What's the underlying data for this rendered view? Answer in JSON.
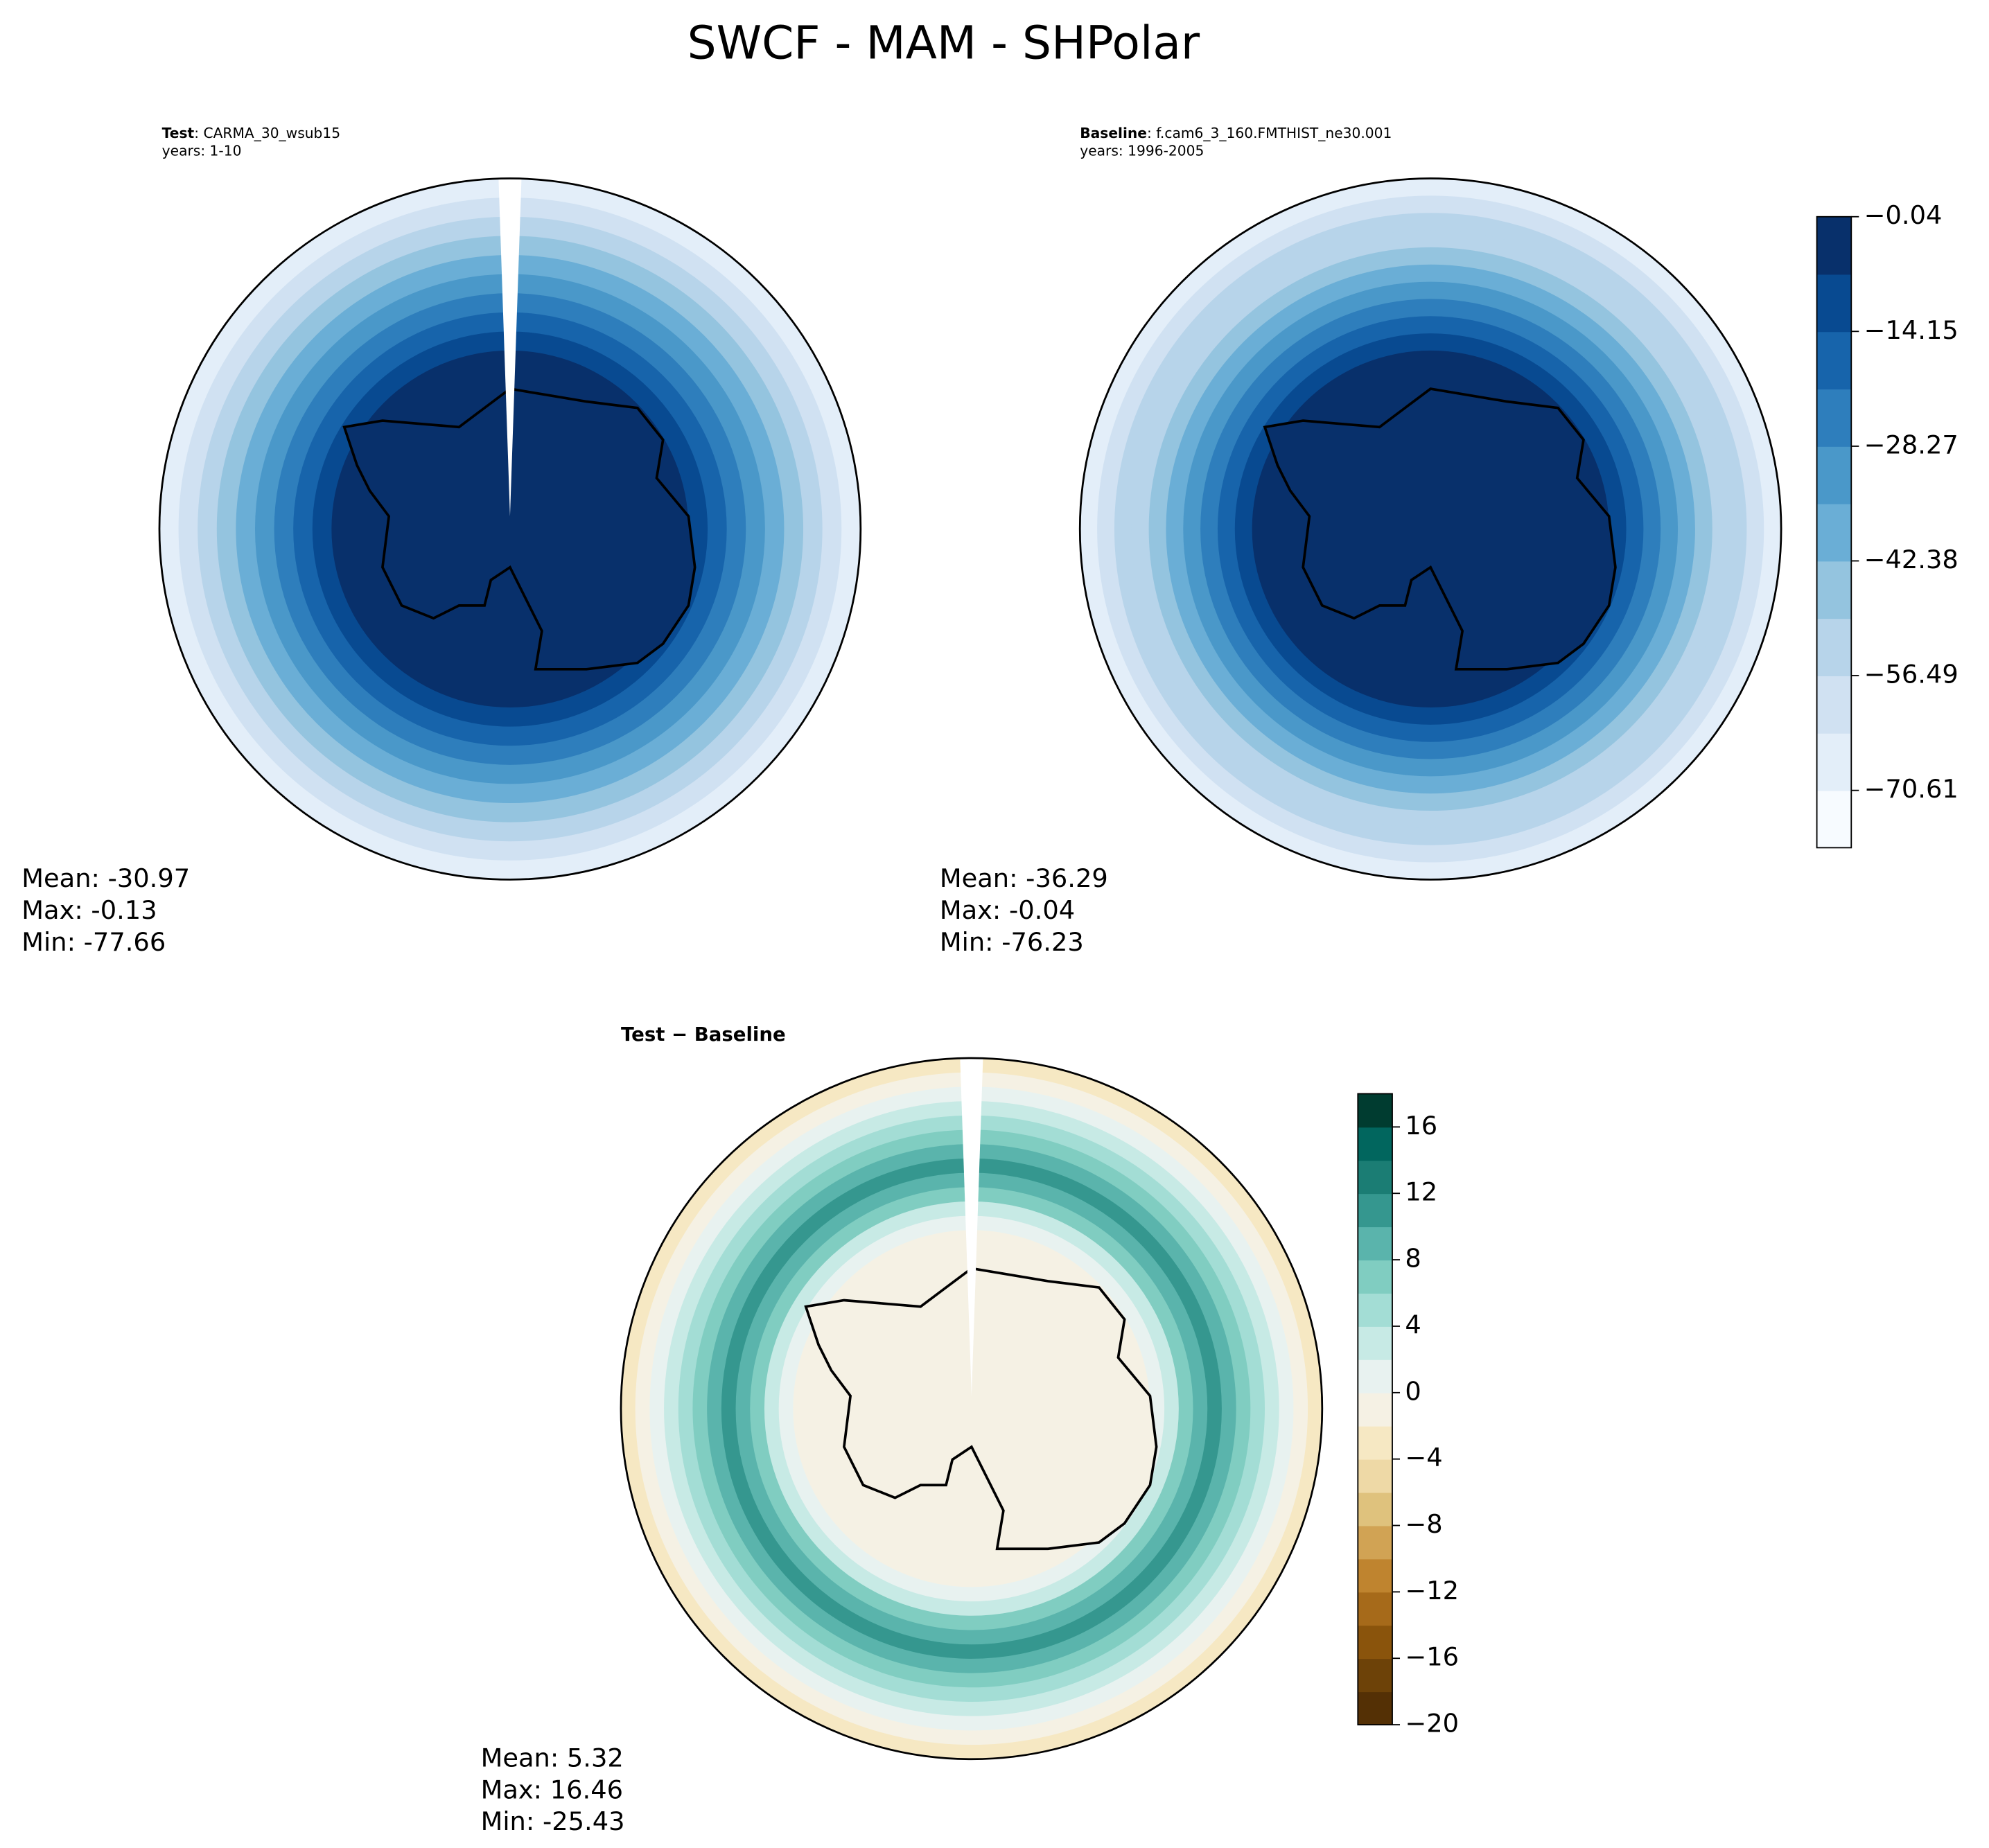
{
  "title": "SWCF - MAM - SHPolar",
  "panels": [
    {
      "name": "Test",
      "case": ": CARMA_30_wsub15",
      "years": "years: 1-10",
      "stats": [
        "Mean: -30.97",
        "Max: -0.13",
        "Min: -77.66"
      ]
    },
    {
      "name": "Baseline",
      "case": ": f.cam6_3_160.FMTHIST_ne30.001",
      "years": "years: 1996-2005",
      "stats": [
        "Mean: -36.29",
        "Max: -0.04",
        "Min: -76.23"
      ]
    },
    {
      "name": "Test − Baseline",
      "stats": [
        "Mean:  5.32",
        "Max: 16.46",
        "Min: -25.43"
      ]
    }
  ],
  "colorbars": [
    {
      "lim": [
        -77.66,
        -0.04
      ],
      "ticks": [
        {
          "value": -0.04,
          "label": "−0.04"
        },
        {
          "value": -14.15,
          "label": "−14.15"
        },
        {
          "value": -28.27,
          "label": "−28.27"
        },
        {
          "value": -42.38,
          "label": "−42.38"
        },
        {
          "value": -56.49,
          "label": "−56.49"
        },
        {
          "value": -70.61,
          "label": "−70.61"
        }
      ],
      "colors": [
        "#f7fbff",
        "#e3eef9",
        "#d0e1f2",
        "#b7d4ea",
        "#94c4df",
        "#6aaed6",
        "#4a98c9",
        "#2e7ebc",
        "#1764ab",
        "#084a91",
        "#08306b"
      ]
    },
    {
      "lim": [
        -20,
        18
      ],
      "ticks": [
        {
          "value": -20,
          "label": "−20"
        },
        {
          "value": -16,
          "label": "−16"
        },
        {
          "value": -12,
          "label": "−12"
        },
        {
          "value": -8,
          "label": "−8"
        },
        {
          "value": -4,
          "label": "−4"
        },
        0,
        4,
        8,
        12,
        16
      ],
      "colors": [
        "#543005",
        "#6d4208",
        "#8a540c",
        "#a66a1a",
        "#bf842f",
        "#d1a354",
        "#dfc27d",
        "#eed9a6",
        "#f6e8c3",
        "#f5f1e4",
        "#e8f2f0",
        "#c7eae5",
        "#a3ddd5",
        "#80cdc1",
        "#5ab4ac",
        "#35978f",
        "#1b7d74",
        "#01665e",
        "#003c30"
      ]
    }
  ]
}
